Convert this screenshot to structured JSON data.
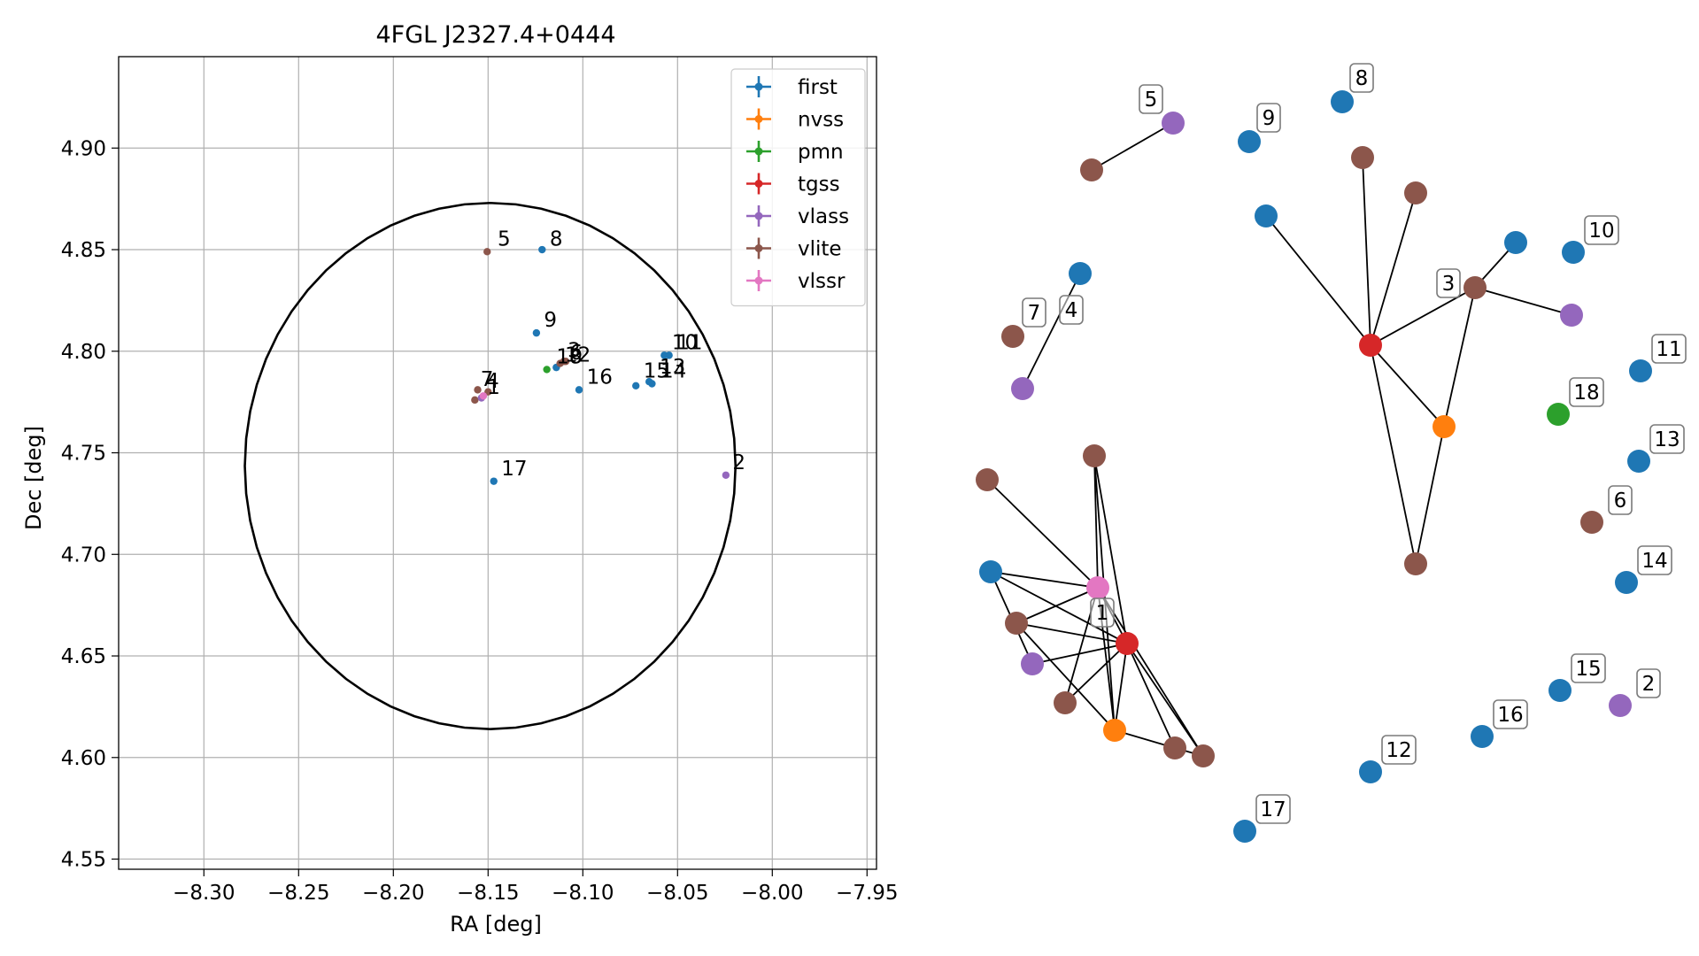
{
  "chart_data": [
    {
      "type": "scatter",
      "title": "4FGL J2327.4+0444",
      "xlabel": "RA [deg]",
      "ylabel": "Dec [deg]",
      "xlim": [
        -8.345,
        -7.945
      ],
      "ylim": [
        4.545,
        4.945
      ],
      "xticks": [
        -8.3,
        -8.25,
        -8.2,
        -8.15,
        -8.1,
        -8.05,
        -8.0,
        -7.95
      ],
      "xtick_labels": [
        "−8.30",
        "−8.25",
        "−8.20",
        "−8.15",
        "−8.10",
        "−8.05",
        "−8.00",
        "−7.95"
      ],
      "yticks": [
        4.55,
        4.6,
        4.65,
        4.7,
        4.75,
        4.8,
        4.85,
        4.9
      ],
      "ytick_labels": [
        "4.55",
        "4.60",
        "4.65",
        "4.70",
        "4.75",
        "4.80",
        "4.85",
        "4.90"
      ],
      "grid": true,
      "legend_position": "top-right",
      "circle": {
        "center_ra": -8.1489,
        "center_dec": 4.7435,
        "radius_deg": 0.1295
      },
      "series": [
        {
          "name": "first",
          "color": "#1f77b4"
        },
        {
          "name": "nvss",
          "color": "#ff7f0e"
        },
        {
          "name": "pmn",
          "color": "#2ca02c"
        },
        {
          "name": "tgss",
          "color": "#d62728"
        },
        {
          "name": "vlass",
          "color": "#9467bd"
        },
        {
          "name": "vlite",
          "color": "#8c564b"
        },
        {
          "name": "vlssr",
          "color": "#e377c2"
        }
      ],
      "points": [
        {
          "series": "vlite",
          "ra": -8.1505,
          "dec": 4.849
        },
        {
          "series": "first",
          "ra": -8.1215,
          "dec": 4.85
        },
        {
          "series": "first",
          "ra": -8.1245,
          "dec": 4.809
        },
        {
          "series": "first",
          "ra": -8.057,
          "dec": 4.798
        },
        {
          "series": "first",
          "ra": -8.0545,
          "dec": 4.798
        },
        {
          "series": "first",
          "ra": -8.065,
          "dec": 4.785
        },
        {
          "series": "first",
          "ra": -8.0635,
          "dec": 4.784
        },
        {
          "series": "first",
          "ra": -8.072,
          "dec": 4.783
        },
        {
          "series": "first",
          "ra": -8.102,
          "dec": 4.781
        },
        {
          "series": "first",
          "ra": -8.114,
          "dec": 4.792
        },
        {
          "series": "first",
          "ra": -8.147,
          "dec": 4.736
        },
        {
          "series": "vlass",
          "ra": -8.0245,
          "dec": 4.739
        },
        {
          "series": "pmn",
          "ra": -8.119,
          "dec": 4.791
        },
        {
          "series": "vlite",
          "ra": -8.112,
          "dec": 4.794
        },
        {
          "series": "vlite",
          "ra": -8.11,
          "dec": 4.795
        },
        {
          "series": "vlite",
          "ra": -8.109,
          "dec": 4.795
        },
        {
          "series": "vlite",
          "ra": -8.1555,
          "dec": 4.781
        },
        {
          "series": "vlite",
          "ra": -8.15,
          "dec": 4.78
        },
        {
          "series": "vlite",
          "ra": -8.157,
          "dec": 4.776
        },
        {
          "series": "vlass",
          "ra": -8.1535,
          "dec": 4.777
        },
        {
          "series": "vlssr",
          "ra": -8.1525,
          "dec": 4.778
        }
      ],
      "annotations": [
        {
          "text": "5",
          "ra": -8.145,
          "dec": 4.852
        },
        {
          "text": "8",
          "ra": -8.1175,
          "dec": 4.852
        },
        {
          "text": "9",
          "ra": -8.1205,
          "dec": 4.812
        },
        {
          "text": "10",
          "ra": -8.053,
          "dec": 4.801
        },
        {
          "text": "11",
          "ra": -8.0505,
          "dec": 4.801
        },
        {
          "text": "3",
          "ra": -8.108,
          "dec": 4.797
        },
        {
          "text": "6",
          "ra": -8.107,
          "dec": 4.796
        },
        {
          "text": "12",
          "ra": -8.1095,
          "dec": 4.795
        },
        {
          "text": "18",
          "ra": -8.114,
          "dec": 4.794
        },
        {
          "text": "16",
          "ra": -8.098,
          "dec": 4.784
        },
        {
          "text": "15",
          "ra": -8.068,
          "dec": 4.787
        },
        {
          "text": "13",
          "ra": -8.0595,
          "dec": 4.789
        },
        {
          "text": "14",
          "ra": -8.059,
          "dec": 4.787
        },
        {
          "text": "7",
          "ra": -8.154,
          "dec": 4.783
        },
        {
          "text": "4",
          "ra": -8.151,
          "dec": 4.782
        },
        {
          "text": "1",
          "ra": -8.1505,
          "dec": 4.779
        },
        {
          "text": "17",
          "ra": -8.143,
          "dec": 4.739
        },
        {
          "text": "2",
          "ra": -8.021,
          "dec": 4.742
        }
      ]
    },
    {
      "type": "network",
      "nodes": [
        {
          "id": "a5",
          "series": "vlite"
        },
        {
          "id": "b5",
          "series": "vlass",
          "label": "5"
        },
        {
          "id": "a9",
          "series": "first",
          "label": "9"
        },
        {
          "id": "a8",
          "series": "first",
          "label": "8"
        },
        {
          "id": "n4",
          "series": "first",
          "label": "4"
        },
        {
          "id": "n7",
          "series": "vlite",
          "label": "7"
        },
        {
          "id": "v4",
          "series": "vlass"
        },
        {
          "id": "c3a",
          "series": "first"
        },
        {
          "id": "c3b",
          "series": "vlite"
        },
        {
          "id": "c3c",
          "series": "vlite"
        },
        {
          "id": "t3",
          "series": "tgss"
        },
        {
          "id": "v3",
          "series": "vlite",
          "label": "3"
        },
        {
          "id": "f3",
          "series": "first"
        },
        {
          "id": "l3",
          "series": "vlass"
        },
        {
          "id": "nv3",
          "series": "nvss"
        },
        {
          "id": "b3",
          "series": "vlite"
        },
        {
          "id": "n10",
          "series": "first",
          "label": "10"
        },
        {
          "id": "n11",
          "series": "first",
          "label": "11"
        },
        {
          "id": "n18",
          "series": "pmn",
          "label": "18"
        },
        {
          "id": "n13",
          "series": "first",
          "label": "13"
        },
        {
          "id": "n6",
          "series": "vlite",
          "label": "6"
        },
        {
          "id": "n14",
          "series": "first",
          "label": "14"
        },
        {
          "id": "n15",
          "series": "first",
          "label": "15"
        },
        {
          "id": "n2",
          "series": "vlass",
          "label": "2"
        },
        {
          "id": "n16",
          "series": "first",
          "label": "16"
        },
        {
          "id": "n12",
          "series": "first",
          "label": "12"
        },
        {
          "id": "n17",
          "series": "first",
          "label": "17"
        },
        {
          "id": "g1a",
          "series": "vlite"
        },
        {
          "id": "g1b",
          "series": "vlite"
        },
        {
          "id": "g1c",
          "series": "first"
        },
        {
          "id": "g1s",
          "series": "vlssr",
          "label": "1"
        },
        {
          "id": "g1t",
          "series": "tgss"
        },
        {
          "id": "g1d",
          "series": "vlite"
        },
        {
          "id": "g1v",
          "series": "vlass"
        },
        {
          "id": "g1e",
          "series": "vlite"
        },
        {
          "id": "g1n",
          "series": "nvss"
        },
        {
          "id": "g1f",
          "series": "vlite"
        },
        {
          "id": "g1g",
          "series": "vlite"
        }
      ],
      "edges": [
        [
          "a5",
          "b5"
        ],
        [
          "n4",
          "v4"
        ],
        [
          "t3",
          "c3a"
        ],
        [
          "t3",
          "c3b"
        ],
        [
          "t3",
          "c3c"
        ],
        [
          "t3",
          "v3"
        ],
        [
          "t3",
          "nv3"
        ],
        [
          "t3",
          "b3"
        ],
        [
          "v3",
          "f3"
        ],
        [
          "v3",
          "l3"
        ],
        [
          "v3",
          "nv3"
        ],
        [
          "nv3",
          "b3"
        ],
        [
          "g1a",
          "g1s"
        ],
        [
          "g1c",
          "g1s"
        ],
        [
          "g1c",
          "g1t"
        ],
        [
          "g1c",
          "g1v"
        ],
        [
          "g1b",
          "g1t"
        ],
        [
          "g1b",
          "g1n"
        ],
        [
          "g1b",
          "g1s"
        ],
        [
          "g1s",
          "g1d"
        ],
        [
          "g1s",
          "g1e"
        ],
        [
          "g1s",
          "g1t"
        ],
        [
          "g1s",
          "g1n"
        ],
        [
          "g1d",
          "g1t"
        ],
        [
          "g1d",
          "g1n"
        ],
        [
          "g1v",
          "g1t"
        ],
        [
          "g1e",
          "g1t"
        ],
        [
          "g1n",
          "g1t"
        ],
        [
          "g1n",
          "g1f"
        ],
        [
          "g1t",
          "g1f"
        ],
        [
          "g1t",
          "g1g"
        ],
        [
          "g1s",
          "g1g"
        ],
        [
          "g1f",
          "g1g"
        ]
      ]
    }
  ]
}
